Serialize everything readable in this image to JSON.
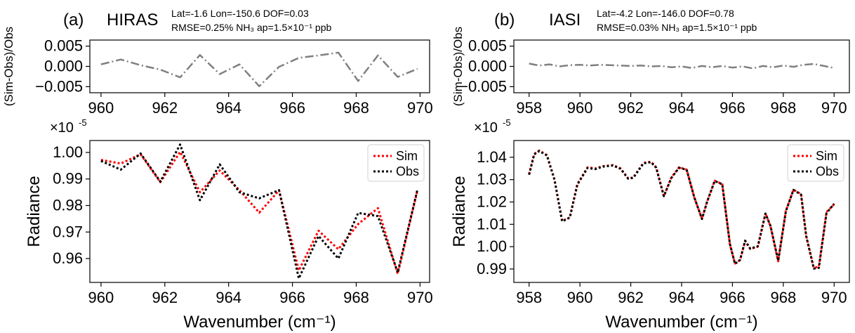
{
  "figure": {
    "panels": [
      {
        "letter": "(a)",
        "instrument": "HIRAS",
        "info_line1": "Lat=-1.6 Lon=-150.6 DOF=0.03",
        "info_line2": "RMSE=0.25% NH₃ ap=1.5×10⁻¹ ppb"
      },
      {
        "letter": "(b)",
        "instrument": "IASI",
        "info_line1": "Lat=-4.2 Lon=-146.0 DOF=0.78",
        "info_line2": "RMSE=0.03% NH₃ ap=1.5×10⁻¹ ppb"
      }
    ],
    "colors": {
      "sim": "#ff0000",
      "obs": "#000000",
      "residual": "#808080"
    }
  },
  "chart_data": [
    {
      "id": "a_residual",
      "type": "line",
      "ylabel": "(Sim-Obs)/Obs",
      "xlim": [
        959.65,
        970.3
      ],
      "ylim": [
        -0.0065,
        0.0065
      ],
      "xticks": [
        960,
        962,
        964,
        966,
        968,
        970
      ],
      "xtick_labels": [
        "960",
        "962",
        "964",
        "966",
        "968",
        "970"
      ],
      "yticks": [
        0.005,
        0.0,
        -0.005
      ],
      "ytick_labels": [
        "0.005",
        "0.000",
        "−0.005"
      ],
      "series": [
        {
          "style": "dashdot",
          "color": "#808080",
          "x": [
            960.0,
            960.62,
            961.24,
            961.86,
            962.48,
            963.1,
            963.72,
            964.34,
            964.96,
            965.58,
            966.2,
            966.82,
            967.44,
            968.06,
            968.68,
            969.3,
            969.92
          ],
          "y": [
            0.0005,
            0.0017,
            0.0003,
            -0.0008,
            -0.0027,
            0.0028,
            -0.0019,
            0.0005,
            -0.0049,
            -0.0001,
            0.0021,
            0.0027,
            0.0034,
            -0.0036,
            0.0027,
            -0.0026,
            -0.0006
          ]
        }
      ]
    },
    {
      "id": "a_radiance",
      "type": "line",
      "scale_label": "×10",
      "scale_exponent": "-5",
      "xlabel": "Wavenumber (cm⁻¹)",
      "ylabel": "Radiance",
      "xlim": [
        959.65,
        970.3
      ],
      "ylim": [
        0.951,
        1.0045
      ],
      "xticks": [
        960,
        962,
        964,
        966,
        968,
        970
      ],
      "xtick_labels": [
        "960",
        "962",
        "964",
        "966",
        "968",
        "970"
      ],
      "yticks": [
        1.0,
        0.99,
        0.98,
        0.97,
        0.96
      ],
      "ytick_labels": [
        "1.00",
        "0.99",
        "0.98",
        "0.97",
        "0.96"
      ],
      "series": [
        {
          "name": "Sim",
          "style": "dotted",
          "color": "#ff0000",
          "x": [
            960.0,
            960.62,
            961.24,
            961.86,
            962.48,
            963.1,
            963.72,
            964.34,
            964.96,
            965.58,
            966.2,
            966.82,
            967.44,
            968.06,
            968.68,
            969.3,
            969.92
          ],
          "y": [
            0.9972,
            0.9958,
            0.9993,
            0.9888,
            1.0002,
            0.985,
            0.9932,
            0.9858,
            0.9773,
            0.9857,
            0.9555,
            0.9705,
            0.9635,
            0.973,
            0.979,
            0.9542,
            0.9858
          ]
        },
        {
          "name": "Obs",
          "style": "dotted",
          "color": "#000000",
          "x": [
            960.0,
            960.62,
            961.24,
            961.86,
            962.48,
            963.1,
            963.72,
            964.34,
            964.96,
            965.58,
            966.2,
            966.82,
            967.44,
            968.06,
            968.68,
            969.3,
            969.92
          ],
          "y": [
            0.9968,
            0.9935,
            0.9996,
            0.989,
            1.003,
            0.982,
            0.9955,
            0.985,
            0.9827,
            0.9858,
            0.9525,
            0.9685,
            0.96,
            0.9772,
            0.976,
            0.9548,
            0.986
          ]
        }
      ],
      "legend": "top-right"
    },
    {
      "id": "b_residual",
      "type": "line",
      "ylabel": "(Sim-Obs)/Obs",
      "xlim": [
        957.4,
        970.6
      ],
      "ylim": [
        -0.0065,
        0.0065
      ],
      "xticks": [
        958,
        960,
        962,
        964,
        966,
        968,
        970
      ],
      "xtick_labels": [
        "958",
        "960",
        "962",
        "964",
        "966",
        "968",
        "970"
      ],
      "yticks": [
        0.005,
        0.0,
        -0.005
      ],
      "ytick_labels": [
        "0.005",
        "0.000",
        "−0.005"
      ],
      "series": [
        {
          "style": "dashdot",
          "color": "#808080",
          "x": [
            958.0,
            958.4,
            958.8,
            959.2,
            959.6,
            960.0,
            960.4,
            960.8,
            961.2,
            961.6,
            962.0,
            962.4,
            962.8,
            963.2,
            963.6,
            964.0,
            964.4,
            964.8,
            965.2,
            965.6,
            966.0,
            966.4,
            966.8,
            967.2,
            967.6,
            968.0,
            968.4,
            968.8,
            969.2,
            969.6,
            970.0
          ],
          "y": [
            0.0007,
            0.0002,
            0.0005,
            0.0,
            0.0003,
            0.0004,
            0.0002,
            0.0004,
            0.0003,
            0.0002,
            0.0001,
            0.0002,
            0.0,
            0.0001,
            -0.0002,
            0.0,
            -0.0004,
            0.0001,
            -0.0002,
            0.0001,
            -0.0003,
            0.0,
            -0.0005,
            0.0001,
            -0.0002,
            0.0002,
            -0.0001,
            0.0004,
            0.0006,
            0.0001,
            -0.0004
          ]
        }
      ]
    },
    {
      "id": "b_radiance",
      "type": "line",
      "scale_label": "×10",
      "scale_exponent": "-5",
      "xlabel": "Wavenumber (cm⁻¹)",
      "ylabel": "Radiance",
      "xlim": [
        957.4,
        970.6
      ],
      "ylim": [
        0.984,
        1.0475
      ],
      "xticks": [
        958,
        960,
        962,
        964,
        966,
        968,
        970
      ],
      "xtick_labels": [
        "958",
        "960",
        "962",
        "964",
        "966",
        "968",
        "970"
      ],
      "yticks": [
        1.04,
        1.03,
        1.02,
        1.01,
        1.0,
        0.99
      ],
      "ytick_labels": [
        "1.04",
        "1.03",
        "1.02",
        "1.01",
        "1.00",
        "0.99"
      ],
      "series": [
        {
          "name": "Sim",
          "style": "dotted",
          "color": "#ff0000",
          "x": [
            958.0,
            958.2,
            958.4,
            958.7,
            959.0,
            959.3,
            959.6,
            959.9,
            960.3,
            960.6,
            960.9,
            961.3,
            961.6,
            961.9,
            962.1,
            962.5,
            962.8,
            963.0,
            963.3,
            963.6,
            963.9,
            964.2,
            964.5,
            964.8,
            965.0,
            965.3,
            965.6,
            965.9,
            966.1,
            966.3,
            966.5,
            966.7,
            967.0,
            967.3,
            967.5,
            967.8,
            968.1,
            968.4,
            968.7,
            968.9,
            969.2,
            969.4,
            969.7,
            970.0
          ],
          "y": [
            1.0325,
            1.0415,
            1.043,
            1.041,
            1.03,
            1.0115,
            1.013,
            1.028,
            1.0355,
            1.035,
            1.036,
            1.0365,
            1.035,
            1.0305,
            1.031,
            1.0375,
            1.038,
            1.0355,
            1.0225,
            1.031,
            1.0355,
            1.0345,
            1.022,
            1.0125,
            1.02,
            1.0295,
            1.028,
            1.001,
            0.9925,
            0.994,
            1.0025,
            0.999,
            1.0,
            1.015,
            1.009,
            0.9935,
            1.016,
            1.0255,
            1.0235,
            1.005,
            0.9905,
            0.991,
            1.0155,
            1.019
          ]
        },
        {
          "name": "Obs",
          "style": "dotted",
          "color": "#000000",
          "x": [
            958.0,
            958.2,
            958.4,
            958.7,
            959.0,
            959.3,
            959.6,
            959.9,
            960.3,
            960.6,
            960.9,
            961.3,
            961.6,
            961.9,
            962.1,
            962.5,
            962.8,
            963.0,
            963.3,
            963.6,
            963.9,
            964.2,
            964.5,
            964.8,
            965.0,
            965.3,
            965.6,
            965.9,
            966.1,
            966.3,
            966.5,
            966.7,
            967.0,
            967.3,
            967.5,
            967.8,
            968.1,
            968.4,
            968.7,
            968.9,
            969.2,
            969.4,
            969.7,
            970.0
          ],
          "y": [
            1.0322,
            1.0413,
            1.0428,
            1.0408,
            1.03,
            1.0113,
            1.013,
            1.0278,
            1.0352,
            1.0347,
            1.0358,
            1.0363,
            1.0348,
            1.0304,
            1.0308,
            1.0373,
            1.0378,
            1.0353,
            1.0226,
            1.0308,
            1.0353,
            1.0344,
            1.022,
            1.0124,
            1.02,
            1.0294,
            1.0279,
            1.0012,
            0.9923,
            0.9941,
            1.0027,
            0.9991,
            1.0002,
            1.0148,
            1.0092,
            0.9937,
            1.0158,
            1.0254,
            1.0233,
            1.0048,
            0.9902,
            0.9905,
            1.015,
            1.0192
          ]
        }
      ],
      "legend": "top-right"
    }
  ]
}
